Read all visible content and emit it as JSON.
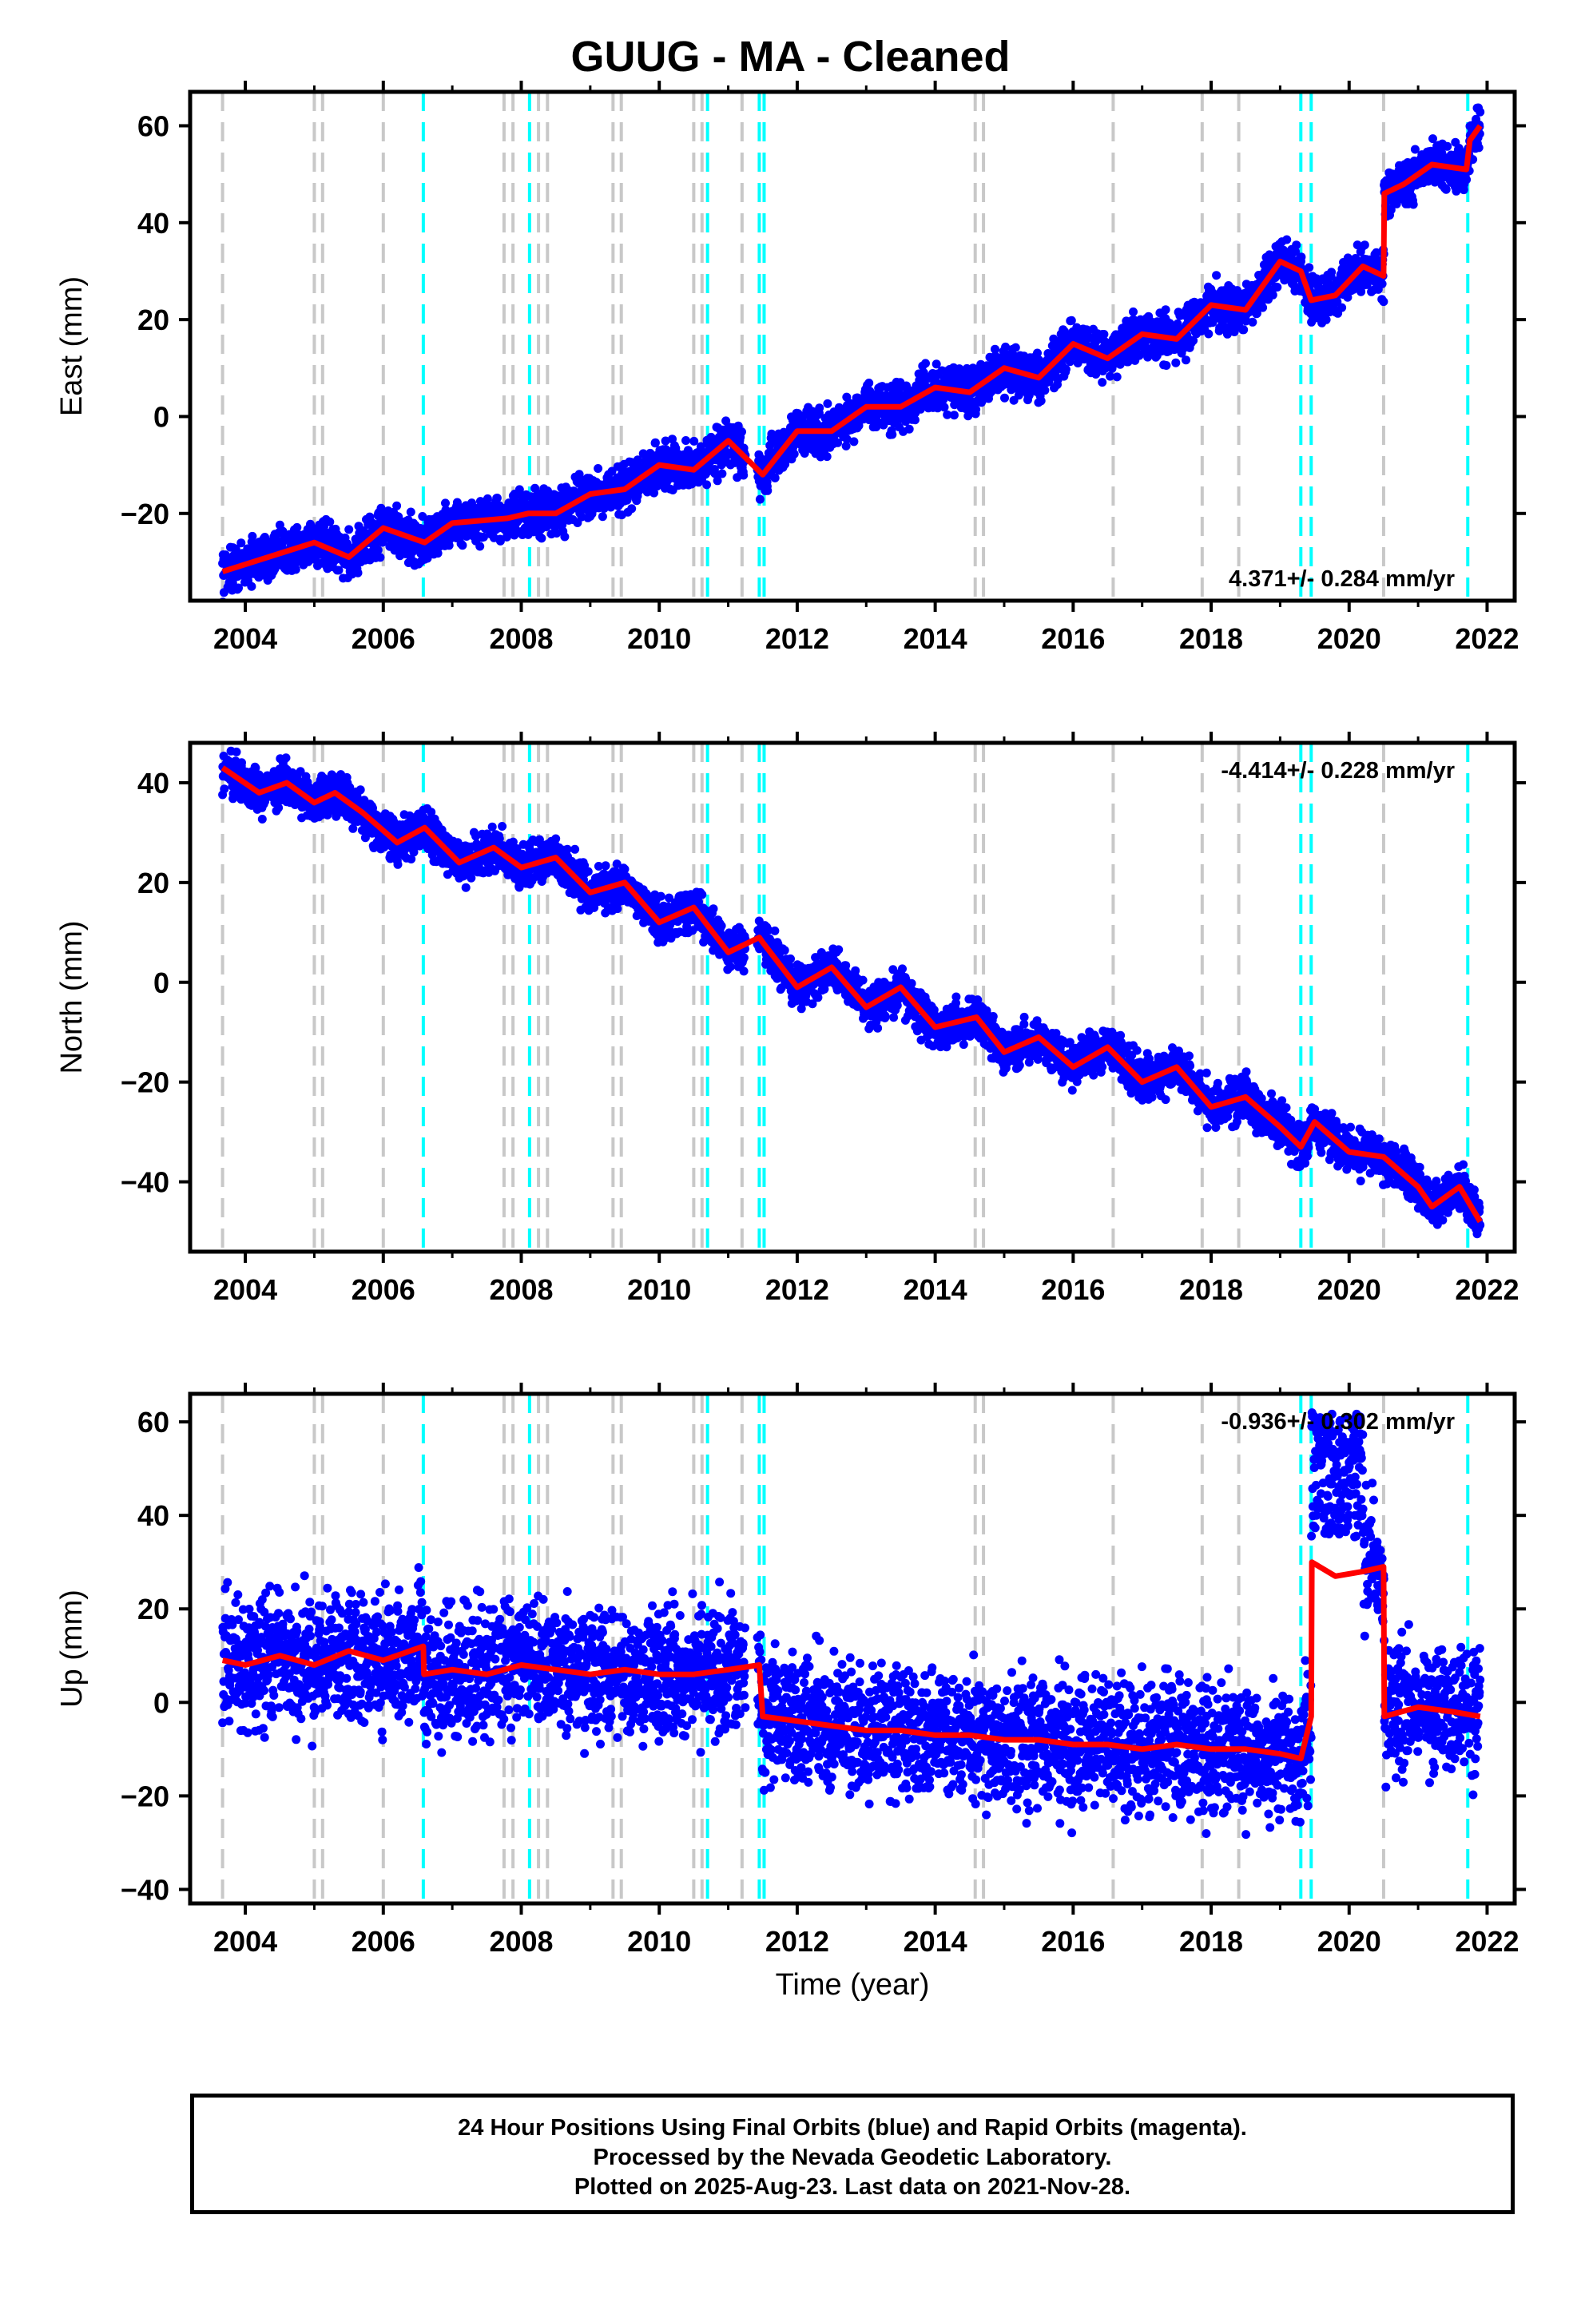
{
  "title": "GUUG  - MA - Cleaned",
  "xlabel": "Time (year)",
  "footer": {
    "line1": "24 Hour Positions Using Final Orbits (blue) and Rapid Orbits (magenta).",
    "line2": "Processed by the Nevada Geodetic Laboratory.",
    "line3": "Plotted on 2025-Aug-23. Last data on 2021-Nov-28."
  },
  "colors": {
    "data_points": "#0000ff",
    "model": "#ff0000",
    "equipment_change": "#c8c8c8",
    "earthquake": "#00ffff",
    "axis": "#000000"
  },
  "chart_data": [
    {
      "type": "scatter",
      "component": "east",
      "ylabel": "East (mm)",
      "rate_label": "4.371+/- 0.284 mm/yr",
      "xlim": [
        2003.2,
        2022.4
      ],
      "ylim": [
        -38,
        67
      ],
      "xticks": [
        "2004",
        "2006",
        "2008",
        "2010",
        "2012",
        "2014",
        "2016",
        "2018",
        "2020",
        "2022"
      ],
      "yticks": [
        "60",
        "40",
        "20",
        "0",
        "−20"
      ],
      "ytick_values": [
        60,
        40,
        20,
        0,
        -20
      ],
      "model": {
        "x": [
          2003.67,
          2005.0,
          2005.5,
          2006.0,
          2006.6,
          2007.0,
          2007.8,
          2008.1,
          2008.5,
          2009.0,
          2009.5,
          2010.0,
          2010.5,
          2011.0,
          2011.5,
          2012.0,
          2012.5,
          2013.0,
          2013.5,
          2014.0,
          2014.5,
          2015.0,
          2015.5,
          2016.0,
          2016.5,
          2017.0,
          2017.5,
          2018.0,
          2018.5,
          2019.0,
          2019.3,
          2019.45,
          2019.8,
          2020.2,
          2020.5,
          2020.51,
          2020.8,
          2021.2,
          2021.7,
          2021.75,
          2021.9
        ],
        "y": [
          -32,
          -26,
          -29,
          -23,
          -26,
          -22,
          -21,
          -20,
          -20,
          -16,
          -15,
          -10,
          -11,
          -5,
          -12,
          -3,
          -3,
          2,
          2,
          6,
          5,
          10,
          8,
          15,
          12,
          17,
          16,
          23,
          22,
          32,
          30,
          24,
          25,
          31,
          29,
          46,
          48,
          52,
          51,
          57,
          60
        ],
        "noise": 2.5
      },
      "equipment_changes": [
        2003.67,
        2005.0,
        2005.12,
        2006.0,
        2007.75,
        2007.88,
        2008.25,
        2008.38,
        2009.33,
        2009.45,
        2010.5,
        2010.62,
        2011.2,
        2014.58,
        2014.7,
        2016.58,
        2017.87,
        2018.4,
        2020.5
      ],
      "earthquakes": [
        2006.58,
        2008.12,
        2010.7,
        2011.45,
        2011.52,
        2019.3,
        2019.45,
        2021.72
      ]
    },
    {
      "type": "scatter",
      "component": "north",
      "ylabel": "North (mm)",
      "rate_label": "-4.414+/- 0.228 mm/yr",
      "xlim": [
        2003.2,
        2022.4
      ],
      "ylim": [
        -54,
        48
      ],
      "xticks": [
        "2004",
        "2006",
        "2008",
        "2010",
        "2012",
        "2014",
        "2016",
        "2018",
        "2020",
        "2022"
      ],
      "yticks": [
        "40",
        "20",
        "0",
        "−20",
        "−40"
      ],
      "ytick_values": [
        40,
        20,
        0,
        -20,
        -40
      ],
      "model": {
        "x": [
          2003.67,
          2004.2,
          2004.6,
          2005.0,
          2005.3,
          2005.7,
          2006.2,
          2006.6,
          2007.1,
          2007.6,
          2008.0,
          2008.5,
          2009.0,
          2009.5,
          2010.0,
          2010.5,
          2011.0,
          2011.45,
          2011.5,
          2012.0,
          2012.5,
          2013.0,
          2013.5,
          2014.0,
          2014.6,
          2015.0,
          2015.5,
          2016.0,
          2016.5,
          2017.0,
          2017.5,
          2018.0,
          2018.5,
          2019.0,
          2019.3,
          2019.5,
          2020.0,
          2020.5,
          2021.0,
          2021.2,
          2021.6,
          2021.9
        ],
        "y": [
          43,
          38,
          40,
          36,
          38,
          34,
          28,
          31,
          24,
          27,
          23,
          25,
          18,
          20,
          12,
          15,
          6,
          9,
          8,
          -1,
          3,
          -5,
          -1,
          -9,
          -7,
          -14,
          -11,
          -17,
          -13,
          -20,
          -17,
          -25,
          -23,
          -29,
          -33,
          -28,
          -34,
          -35,
          -41,
          -45,
          -41,
          -48
        ],
        "noise": 2.3
      },
      "equipment_changes": [
        2003.67,
        2005.0,
        2005.12,
        2006.0,
        2007.75,
        2007.88,
        2008.25,
        2008.38,
        2009.33,
        2009.45,
        2010.5,
        2010.62,
        2011.2,
        2014.58,
        2014.7,
        2016.58,
        2017.87,
        2018.4,
        2020.5
      ],
      "earthquakes": [
        2006.58,
        2008.12,
        2010.7,
        2011.45,
        2011.52,
        2019.3,
        2019.45,
        2021.72
      ]
    },
    {
      "type": "scatter",
      "component": "up",
      "ylabel": "Up (mm)",
      "rate_label": "-0.936+/- 0.302 mm/yr",
      "xlim": [
        2003.2,
        2022.4
      ],
      "ylim": [
        -43,
        66
      ],
      "xticks": [
        "2004",
        "2006",
        "2008",
        "2010",
        "2012",
        "2014",
        "2016",
        "2018",
        "2020",
        "2022"
      ],
      "yticks": [
        "60",
        "40",
        "20",
        "0",
        "−20",
        "−40"
      ],
      "ytick_values": [
        60,
        40,
        20,
        0,
        -20,
        -40
      ],
      "model": {
        "x": [
          2003.67,
          2004.0,
          2004.5,
          2005.0,
          2005.5,
          2006.0,
          2006.58,
          2006.59,
          2007.0,
          2007.5,
          2008.0,
          2008.5,
          2009.0,
          2009.5,
          2010.0,
          2010.5,
          2011.0,
          2011.45,
          2011.5,
          2012.0,
          2012.5,
          2013.0,
          2013.5,
          2014.0,
          2014.5,
          2015.0,
          2015.5,
          2016.0,
          2016.5,
          2017.0,
          2017.5,
          2018.0,
          2018.5,
          2019.0,
          2019.3,
          2019.45,
          2019.46,
          2019.8,
          2020.2,
          2020.5,
          2020.51,
          2021.0,
          2021.5,
          2021.9
        ],
        "y": [
          9,
          8,
          10,
          8,
          11,
          9,
          12,
          6,
          7,
          6,
          8,
          7,
          6,
          7,
          6,
          6,
          7,
          8,
          -3,
          -4,
          -5,
          -6,
          -6,
          -7,
          -7,
          -8,
          -8,
          -9,
          -9,
          -10,
          -9,
          -10,
          -10,
          -11,
          -12,
          -3,
          30,
          27,
          28,
          29,
          -3,
          -1,
          -2,
          -3
        ],
        "noise": 7.5
      },
      "outlier_cluster": {
        "x": [
          2019.45,
          2020.2
        ],
        "y": [
          30,
          62
        ]
      },
      "equipment_changes": [
        2003.67,
        2005.0,
        2005.12,
        2006.0,
        2007.75,
        2007.88,
        2008.25,
        2008.38,
        2009.33,
        2009.45,
        2010.5,
        2010.62,
        2011.2,
        2014.58,
        2014.7,
        2016.58,
        2017.87,
        2018.4,
        2020.5
      ],
      "earthquakes": [
        2006.58,
        2008.12,
        2010.7,
        2011.45,
        2011.52,
        2019.3,
        2019.45,
        2021.72
      ]
    }
  ]
}
